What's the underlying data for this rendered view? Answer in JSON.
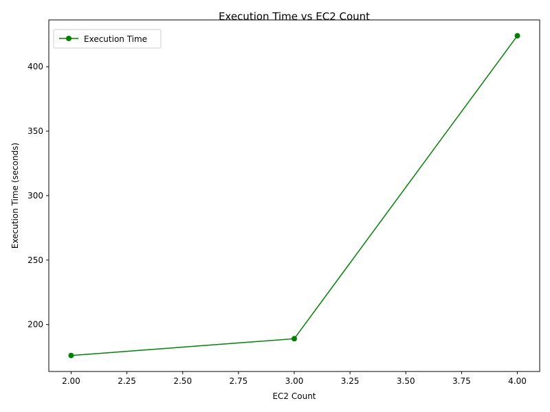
{
  "chart_data": {
    "type": "line",
    "title": "Execution Time vs EC2 Count",
    "xlabel": "EC2 Count",
    "ylabel": "Execution Time (seconds)",
    "xlim": [
      1.9,
      4.1
    ],
    "ylim": [
      163.6,
      436.3
    ],
    "x_ticks": [
      2.0,
      2.25,
      2.5,
      2.75,
      3.0,
      3.25,
      3.5,
      3.75,
      4.0
    ],
    "x_tick_labels": [
      "2.00",
      "2.25",
      "2.50",
      "2.75",
      "3.00",
      "3.25",
      "3.50",
      "3.75",
      "4.00"
    ],
    "y_ticks": [
      200,
      250,
      300,
      350,
      400
    ],
    "y_tick_labels": [
      "200",
      "250",
      "300",
      "350",
      "400"
    ],
    "grid": false,
    "legend": "upper-left",
    "series": [
      {
        "name": "Execution Time",
        "color": "#008000",
        "marker": "circle",
        "x": [
          2,
          3,
          4
        ],
        "y": [
          176,
          189,
          424
        ]
      }
    ]
  }
}
